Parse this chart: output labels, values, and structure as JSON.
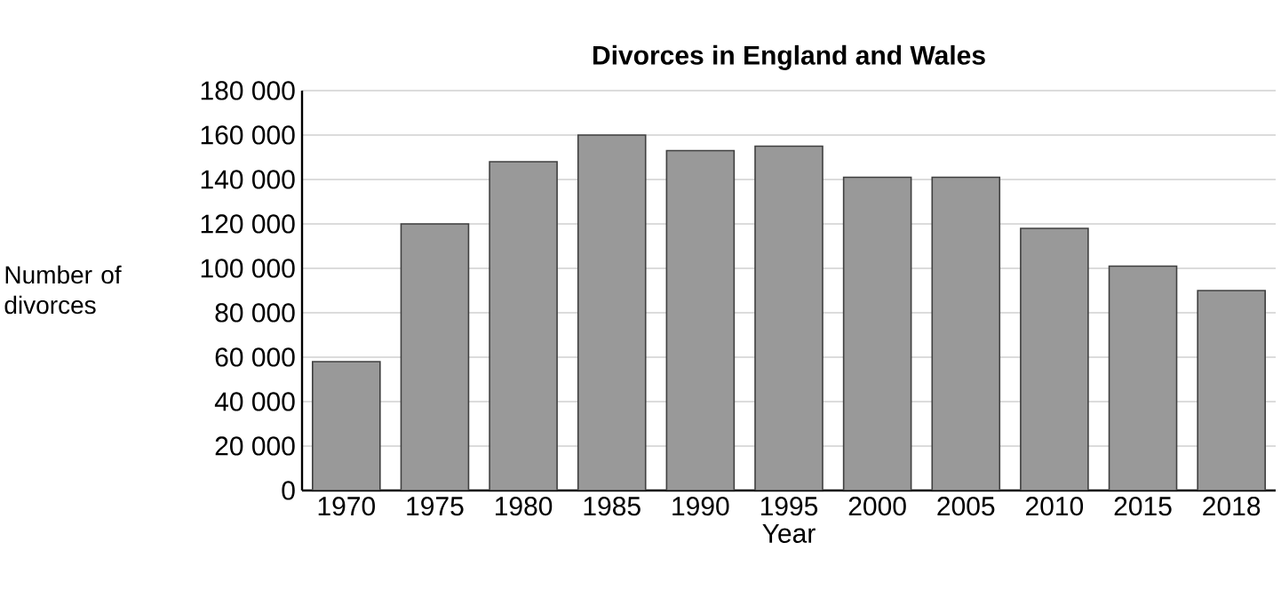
{
  "chart_data": {
    "type": "bar",
    "title": "Divorces in England and Wales",
    "xlabel": "Year",
    "ylabel": "Number of divorces",
    "categories": [
      "1970",
      "1975",
      "1980",
      "1985",
      "1990",
      "1995",
      "2000",
      "2005",
      "2010",
      "2015",
      "2018"
    ],
    "values": [
      58000,
      120000,
      148000,
      160000,
      153000,
      155000,
      141000,
      141000,
      118000,
      101000,
      90000
    ],
    "color": "#999999",
    "ylim": [
      0,
      180000
    ],
    "yticks": [
      {
        "value": 0,
        "label": "0"
      },
      {
        "value": 20000,
        "label": "20 000"
      },
      {
        "value": 40000,
        "label": "40 000"
      },
      {
        "value": 60000,
        "label": "60 000"
      },
      {
        "value": 80000,
        "label": "80 000"
      },
      {
        "value": 100000,
        "label": "100 000"
      },
      {
        "value": 120000,
        "label": "120 000"
      },
      {
        "value": 140000,
        "label": "140 000"
      },
      {
        "value": 160000,
        "label": "160 000"
      },
      {
        "value": 180000,
        "label": "180 000"
      }
    ],
    "grid": "y"
  }
}
